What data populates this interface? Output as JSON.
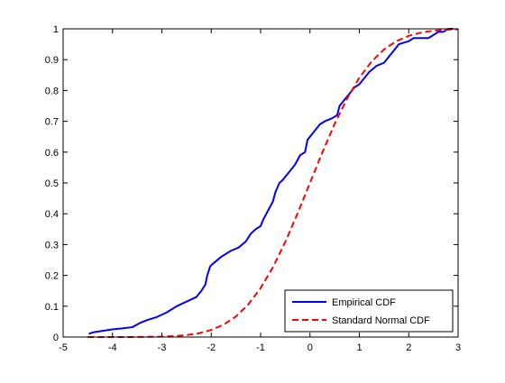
{
  "chart_data": {
    "type": "line",
    "title": "",
    "xlabel": "",
    "ylabel": "",
    "xlim": [
      -5,
      3
    ],
    "ylim": [
      0,
      1
    ],
    "xticks": [
      "-5",
      "-4",
      "-3",
      "-2",
      "-1",
      "0",
      "1",
      "2",
      "3"
    ],
    "yticks": [
      "0",
      "0.1",
      "0.2",
      "0.3",
      "0.4",
      "0.5",
      "0.6",
      "0.7",
      "0.8",
      "0.9",
      "1"
    ],
    "grid": false,
    "legend_position": "bottom-right",
    "series": [
      {
        "name": "Empirical CDF",
        "color": "#0000ff",
        "style": "solid",
        "x": [
          -4.48,
          -4.4,
          -4.2,
          -4.0,
          -3.8,
          -3.6,
          -3.45,
          -3.3,
          -3.1,
          -2.9,
          -2.7,
          -2.5,
          -2.3,
          -2.2,
          -2.12,
          -2.08,
          -2.02,
          -1.95,
          -1.8,
          -1.6,
          -1.45,
          -1.3,
          -1.2,
          -1.1,
          -1.0,
          -0.95,
          -0.85,
          -0.75,
          -0.7,
          -0.62,
          -0.55,
          -0.5,
          -0.45,
          -0.4,
          -0.3,
          -0.2,
          -0.1,
          -0.05,
          0.0,
          0.05,
          0.1,
          0.2,
          0.3,
          0.45,
          0.55,
          0.6,
          0.7,
          0.8,
          0.9,
          1.0,
          1.1,
          1.2,
          1.35,
          1.5,
          1.55,
          1.6,
          1.7,
          1.8,
          2.0,
          2.1,
          2.4,
          2.5,
          2.6,
          2.7,
          2.8,
          2.9
        ],
        "y": [
          0.01,
          0.015,
          0.02,
          0.025,
          0.028,
          0.032,
          0.045,
          0.055,
          0.065,
          0.08,
          0.1,
          0.115,
          0.13,
          0.15,
          0.17,
          0.2,
          0.23,
          0.24,
          0.26,
          0.28,
          0.29,
          0.31,
          0.335,
          0.35,
          0.36,
          0.38,
          0.41,
          0.44,
          0.47,
          0.5,
          0.51,
          0.52,
          0.53,
          0.54,
          0.56,
          0.59,
          0.6,
          0.64,
          0.65,
          0.66,
          0.67,
          0.69,
          0.7,
          0.71,
          0.72,
          0.75,
          0.77,
          0.79,
          0.81,
          0.82,
          0.84,
          0.86,
          0.88,
          0.89,
          0.9,
          0.91,
          0.93,
          0.95,
          0.96,
          0.97,
          0.97,
          0.98,
          0.99,
          0.99,
          1.0,
          1.0
        ]
      },
      {
        "name": "Standard Normal CDF",
        "color": "#ff0000",
        "style": "dashed",
        "x": [
          -4.5,
          -4.0,
          -3.5,
          -3.0,
          -2.75,
          -2.5,
          -2.25,
          -2.0,
          -1.75,
          -1.5,
          -1.25,
          -1.0,
          -0.75,
          -0.5,
          -0.25,
          0.0,
          0.25,
          0.5,
          0.75,
          1.0,
          1.25,
          1.5,
          1.75,
          2.0,
          2.25,
          2.5,
          2.75,
          3.0
        ],
        "y": [
          0.0,
          0.0,
          0.0002,
          0.0013,
          0.003,
          0.0062,
          0.0122,
          0.0228,
          0.0401,
          0.0668,
          0.1056,
          0.1587,
          0.2266,
          0.3085,
          0.4013,
          0.5,
          0.5987,
          0.6915,
          0.7734,
          0.8413,
          0.8944,
          0.9332,
          0.9599,
          0.9772,
          0.9878,
          0.9938,
          0.997,
          0.9987
        ]
      }
    ]
  }
}
